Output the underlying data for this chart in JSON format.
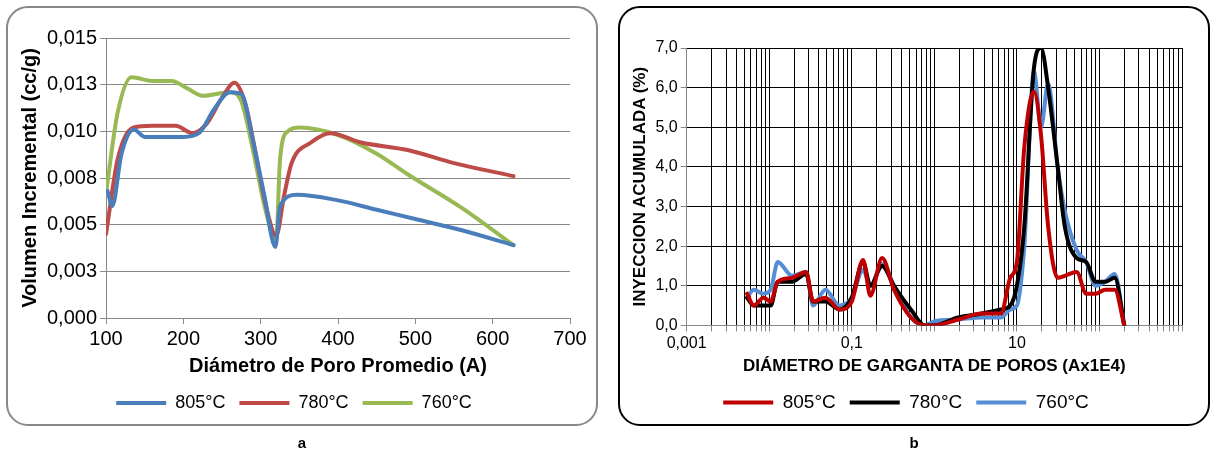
{
  "chart_data": [
    {
      "type": "line",
      "xlabel": "Diámetro de Poro Promedio (A)",
      "ylabel": "Volumen Incremental (cc/g)",
      "xlim": [
        100,
        700
      ],
      "xticks": [
        100,
        200,
        300,
        400,
        500,
        600,
        700
      ],
      "ylim": [
        0,
        0.015
      ],
      "yticks": [
        {
          "value": 0,
          "label": "0,000"
        },
        {
          "value": 0.0025,
          "label": "0,003"
        },
        {
          "value": 0.005,
          "label": "0,005"
        },
        {
          "value": 0.0075,
          "label": "0,008"
        },
        {
          "value": 0.01,
          "label": "0,010"
        },
        {
          "value": 0.0125,
          "label": "0,013"
        },
        {
          "value": 0.015,
          "label": "0,015"
        }
      ],
      "grid": "y",
      "legend": "bottom",
      "marker": "none",
      "line_style": "solid",
      "annotations": [
        "a"
      ],
      "series": [
        {
          "name": "805°C",
          "color": "#4a7ebb",
          "x": [
            102,
            108,
            120,
            136,
            150,
            175,
            200,
            220,
            240,
            260,
            275,
            290,
            305,
            319,
            325,
            347,
            400,
            450,
            500,
            560,
            627
          ],
          "values": [
            0.0068,
            0.006,
            0.0088,
            0.0101,
            0.0097,
            0.0097,
            0.0097,
            0.0099,
            0.0112,
            0.0121,
            0.012,
            0.0095,
            0.0065,
            0.0038,
            0.006,
            0.0066,
            0.0063,
            0.0058,
            0.0053,
            0.0047,
            0.0039
          ]
        },
        {
          "name": "780°C",
          "color": "#be4b48",
          "x": [
            100,
            115,
            135,
            160,
            190,
            212,
            230,
            250,
            266,
            280,
            295,
            308,
            320,
            330,
            340,
            365,
            390,
            430,
            490,
            550,
            627
          ],
          "values": [
            0.0045,
            0.0085,
            0.0102,
            0.0103,
            0.0103,
            0.0099,
            0.0104,
            0.0118,
            0.0126,
            0.0115,
            0.0085,
            0.0058,
            0.0044,
            0.0065,
            0.0083,
            0.0094,
            0.0099,
            0.0094,
            0.009,
            0.0083,
            0.0076
          ]
        },
        {
          "name": "760°C",
          "color": "#98b954",
          "x": [
            100,
            115,
            133,
            160,
            185,
            205,
            225,
            260,
            275,
            290,
            305,
            320,
            325,
            335,
            350,
            400,
            450,
            490,
            560,
            627
          ],
          "values": [
            0.0067,
            0.011,
            0.0129,
            0.0127,
            0.0127,
            0.0123,
            0.0119,
            0.0121,
            0.0116,
            0.009,
            0.006,
            0.0041,
            0.0085,
            0.01,
            0.0102,
            0.0098,
            0.0088,
            0.0077,
            0.0059,
            0.0039
          ]
        }
      ]
    },
    {
      "type": "line",
      "xlabel": "DIÁMETRO DE GARGANTA DE POROS (Ax1E4)",
      "ylabel": "INYECCION ACUMULADA (%)",
      "log": "x",
      "xlim": [
        0.001,
        1000
      ],
      "xticks": [
        {
          "value": 0.001,
          "label": "0,001"
        },
        {
          "value": 0.002,
          "label": null
        },
        {
          "value": 0.003,
          "label": null
        },
        {
          "value": 0.004,
          "label": null
        },
        {
          "value": 0.005,
          "label": null
        },
        {
          "value": 0.006,
          "label": null
        },
        {
          "value": 0.007,
          "label": null
        },
        {
          "value": 0.008,
          "label": null
        },
        {
          "value": 0.009,
          "label": null
        },
        {
          "value": 0.01,
          "label": null
        },
        {
          "value": 0.02,
          "label": null
        },
        {
          "value": 0.03,
          "label": null
        },
        {
          "value": 0.04,
          "label": null
        },
        {
          "value": 0.05,
          "label": null
        },
        {
          "value": 0.06,
          "label": null
        },
        {
          "value": 0.07,
          "label": null
        },
        {
          "value": 0.08,
          "label": null
        },
        {
          "value": 0.09,
          "label": null
        },
        {
          "value": 0.1,
          "label": "0,1"
        },
        {
          "value": 0.2,
          "label": null
        },
        {
          "value": 0.3,
          "label": null
        },
        {
          "value": 0.4,
          "label": null
        },
        {
          "value": 0.5,
          "label": null
        },
        {
          "value": 0.6,
          "label": null
        },
        {
          "value": 0.7,
          "label": null
        },
        {
          "value": 0.8,
          "label": null
        },
        {
          "value": 0.9,
          "label": null
        },
        {
          "value": 1,
          "label": null
        },
        {
          "value": 2,
          "label": null
        },
        {
          "value": 3,
          "label": null
        },
        {
          "value": 4,
          "label": null
        },
        {
          "value": 5,
          "label": null
        },
        {
          "value": 6,
          "label": null
        },
        {
          "value": 7,
          "label": null
        },
        {
          "value": 8,
          "label": null
        },
        {
          "value": 9,
          "label": null
        },
        {
          "value": 10,
          "label": "10"
        },
        {
          "value": 20,
          "label": null
        },
        {
          "value": 30,
          "label": null
        },
        {
          "value": 40,
          "label": null
        },
        {
          "value": 50,
          "label": null
        },
        {
          "value": 60,
          "label": null
        },
        {
          "value": 70,
          "label": null
        },
        {
          "value": 80,
          "label": null
        },
        {
          "value": 90,
          "label": null
        },
        {
          "value": 100,
          "label": null
        },
        {
          "value": 200,
          "label": null
        },
        {
          "value": 300,
          "label": null
        },
        {
          "value": 400,
          "label": null
        },
        {
          "value": 500,
          "label": null
        },
        {
          "value": 600,
          "label": null
        },
        {
          "value": 700,
          "label": null
        },
        {
          "value": 800,
          "label": null
        },
        {
          "value": 900,
          "label": null
        },
        {
          "value": 1000,
          "label": null
        }
      ],
      "ylim": [
        0,
        7
      ],
      "yticks": [
        {
          "value": 0,
          "label": "0,0"
        },
        {
          "value": 1,
          "label": "1,0"
        },
        {
          "value": 2,
          "label": "2,0"
        },
        {
          "value": 3,
          "label": "3,0"
        },
        {
          "value": 4,
          "label": "4,0"
        },
        {
          "value": 5,
          "label": "5,0"
        },
        {
          "value": 6,
          "label": "6,0"
        },
        {
          "value": 7,
          "label": "7,0"
        }
      ],
      "grid": true,
      "legend": "bottom",
      "marker": "none",
      "line_style": "solid",
      "annotations": [
        "b"
      ],
      "x": [
        0.0054,
        0.0065,
        0.0085,
        0.0104,
        0.0127,
        0.0189,
        0.028,
        0.034,
        0.048,
        0.071,
        0.1,
        0.137,
        0.168,
        0.233,
        0.325,
        0.52,
        0.77,
        1,
        1.94,
        3.76,
        6.4,
        8.3,
        10,
        12.3,
        16.1,
        19.6,
        23.9,
        31.2,
        38,
        53,
        69,
        90,
        117,
        153,
        200
      ],
      "series": [
        {
          "name": "805°C",
          "color": "#c00000",
          "values": [
            0.8,
            0.5,
            0.7,
            0.6,
            1.1,
            1.2,
            1.35,
            0.6,
            0.7,
            0.4,
            0.6,
            1.65,
            0.75,
            1.7,
            0.9,
            0.2,
            0,
            0,
            0.15,
            0.3,
            0.3,
            1.2,
            1.6,
            4.5,
            5.9,
            4.8,
            2.5,
            1.2,
            1.25,
            1.35,
            0.8,
            0.8,
            0.9,
            0.9,
            0
          ]
        },
        {
          "name": "780°C",
          "color": "#000000",
          "values": [
            0.7,
            0.5,
            0.5,
            0.5,
            1.1,
            1.1,
            1.3,
            0.6,
            0.6,
            0.4,
            0.7,
            1.6,
            1,
            1.5,
            1,
            0.4,
            0,
            0,
            0.2,
            0.3,
            0.4,
            0.5,
            1,
            2.5,
            6.5,
            7,
            6,
            4,
            2.5,
            1.7,
            1.6,
            1.1,
            1.1,
            1.2,
            0
          ]
        },
        {
          "name": "760°C",
          "color": "#558ed5",
          "values": [
            0.7,
            0.9,
            0.8,
            0.9,
            1.6,
            1.25,
            1.35,
            0.5,
            0.9,
            0.5,
            0.7,
            1.4,
            1,
            1.55,
            1,
            0.2,
            0,
            0.1,
            0.15,
            0.2,
            0.2,
            0.4,
            0.5,
            2,
            6.4,
            5,
            6.1,
            4,
            2.9,
            1.9,
            1.6,
            1,
            1.1,
            1.3,
            0
          ]
        }
      ]
    }
  ]
}
